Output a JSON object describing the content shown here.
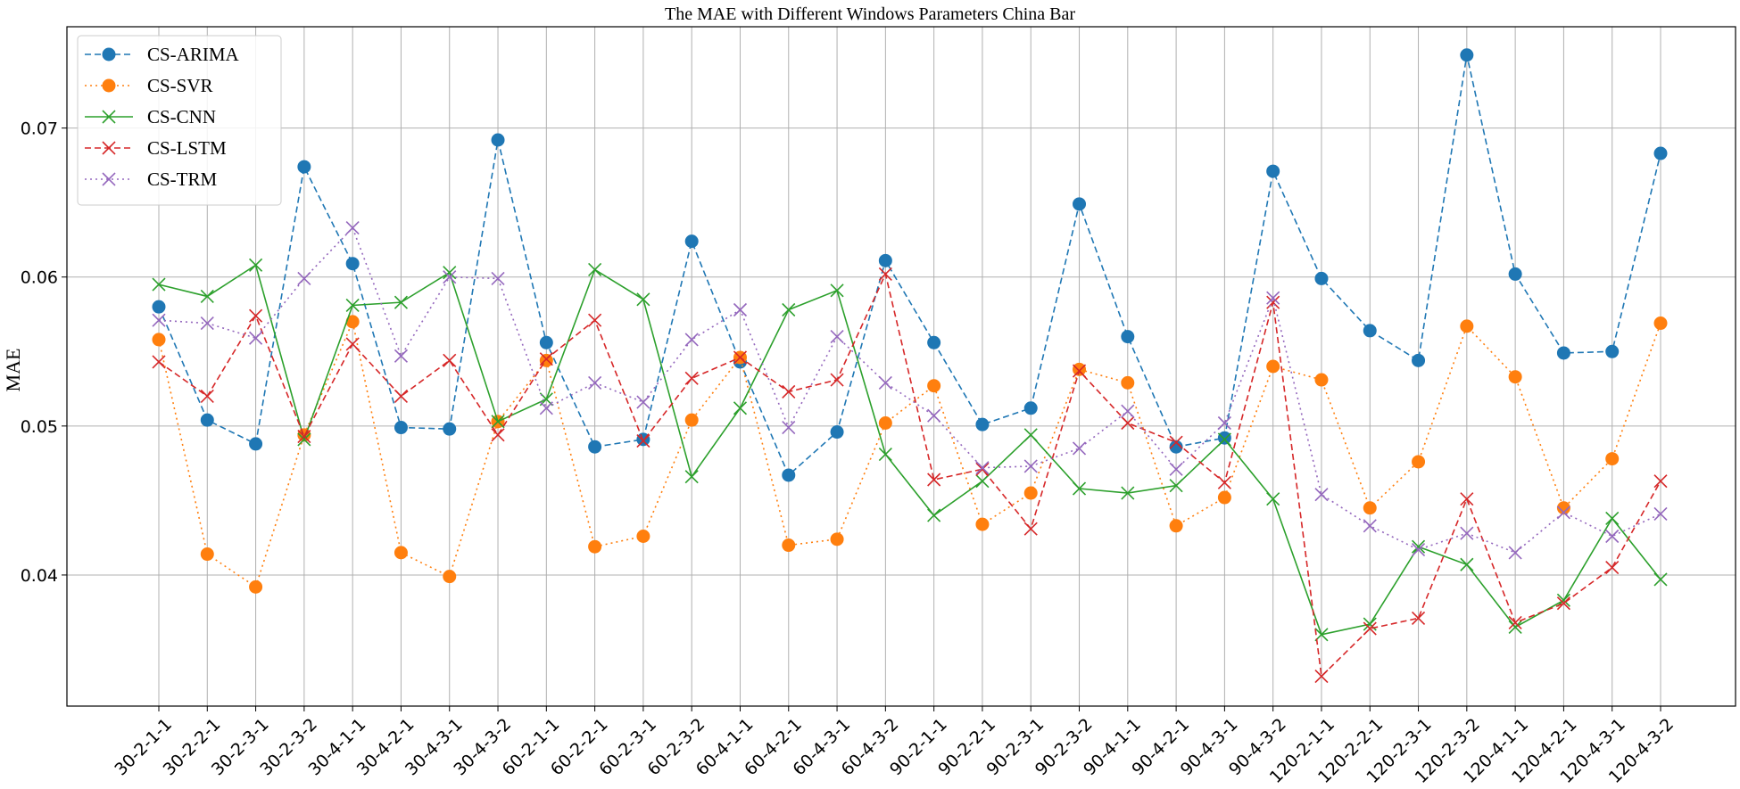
{
  "chart_data": {
    "type": "line",
    "title": "The MAE with Different Windows Parameters China Bar",
    "xlabel": "",
    "ylabel": "MAE",
    "ylim": [
      0.0312,
      0.0768
    ],
    "yticks": [
      0.04,
      0.05,
      0.06,
      0.07
    ],
    "ytick_labels": [
      "0.04",
      "0.05",
      "0.06",
      "0.07"
    ],
    "grid": true,
    "legend_position": "top-left",
    "categories": [
      "30-2-1-1",
      "30-2-2-1",
      "30-2-3-1",
      "30-2-3-2",
      "30-4-1-1",
      "30-4-2-1",
      "30-4-3-1",
      "30-4-3-2",
      "60-2-1-1",
      "60-2-2-1",
      "60-2-3-1",
      "60-2-3-2",
      "60-4-1-1",
      "60-4-2-1",
      "60-4-3-1",
      "60-4-3-2",
      "90-2-1-1",
      "90-2-2-1",
      "90-2-3-1",
      "90-2-3-2",
      "90-4-1-1",
      "90-4-2-1",
      "90-4-3-1",
      "90-4-3-2",
      "120-2-1-1",
      "120-2-2-1",
      "120-2-3-1",
      "120-2-3-2",
      "120-4-1-1",
      "120-4-2-1",
      "120-4-3-1",
      "120-4-3-2"
    ],
    "series": [
      {
        "name": "CS-ARIMA",
        "color": "#1f77b4",
        "linestyle": "dashed",
        "marker": "circle",
        "values": [
          0.058,
          0.0504,
          0.0488,
          0.0674,
          0.0609,
          0.0499,
          0.0498,
          0.0692,
          0.0556,
          0.0486,
          0.0491,
          0.0624,
          0.0543,
          0.0467,
          0.0496,
          0.0611,
          0.0556,
          0.0501,
          0.0512,
          0.0649,
          0.056,
          0.0486,
          0.0492,
          0.0671,
          0.0599,
          0.0564,
          0.0544,
          0.0749,
          0.0602,
          0.0549,
          0.055,
          0.0683
        ]
      },
      {
        "name": "CS-SVR",
        "color": "#ff7f0e",
        "linestyle": "dotted",
        "marker": "circle",
        "values": [
          0.0558,
          0.0414,
          0.0392,
          0.0494,
          0.057,
          0.0415,
          0.0399,
          0.0503,
          0.0544,
          0.0419,
          0.0426,
          0.0504,
          0.0546,
          0.042,
          0.0424,
          0.0502,
          0.0527,
          0.0434,
          0.0455,
          0.0538,
          0.0529,
          0.0433,
          0.0452,
          0.054,
          0.0531,
          0.0445,
          0.0476,
          0.0567,
          0.0533,
          0.0445,
          0.0478,
          0.0569
        ]
      },
      {
        "name": "CS-CNN",
        "color": "#2ca02c",
        "linestyle": "solid",
        "marker": "x",
        "values": [
          0.0595,
          0.0587,
          0.0608,
          0.0491,
          0.0581,
          0.0583,
          0.0603,
          0.0503,
          0.0518,
          0.0605,
          0.0585,
          0.0466,
          0.0512,
          0.0578,
          0.0591,
          0.0481,
          0.044,
          0.0463,
          0.0494,
          0.0458,
          0.0455,
          0.046,
          0.0491,
          0.0451,
          0.036,
          0.0367,
          0.0419,
          0.0407,
          0.0365,
          0.0383,
          0.0438,
          0.0397
        ]
      },
      {
        "name": "CS-LSTM",
        "color": "#d62728",
        "linestyle": "dashed",
        "marker": "x",
        "values": [
          0.0543,
          0.052,
          0.0574,
          0.0493,
          0.0555,
          0.052,
          0.0544,
          0.0494,
          0.0545,
          0.0571,
          0.049,
          0.0532,
          0.0546,
          0.0523,
          0.0531,
          0.0602,
          0.0464,
          0.0471,
          0.0431,
          0.0537,
          0.0502,
          0.0489,
          0.0462,
          0.0583,
          0.0332,
          0.0364,
          0.0371,
          0.0451,
          0.0368,
          0.0381,
          0.0405,
          0.0463
        ]
      },
      {
        "name": "CS-TRM",
        "color": "#9467bd",
        "linestyle": "dotted",
        "marker": "x",
        "values": [
          0.0571,
          0.0569,
          0.0559,
          0.0599,
          0.0633,
          0.0547,
          0.06,
          0.0599,
          0.0512,
          0.0529,
          0.0516,
          0.0558,
          0.0578,
          0.0499,
          0.056,
          0.0529,
          0.0507,
          0.0472,
          0.0473,
          0.0485,
          0.051,
          0.0471,
          0.0502,
          0.0586,
          0.0454,
          0.0433,
          0.0417,
          0.0428,
          0.0415,
          0.0442,
          0.0426,
          0.0441
        ]
      }
    ]
  }
}
